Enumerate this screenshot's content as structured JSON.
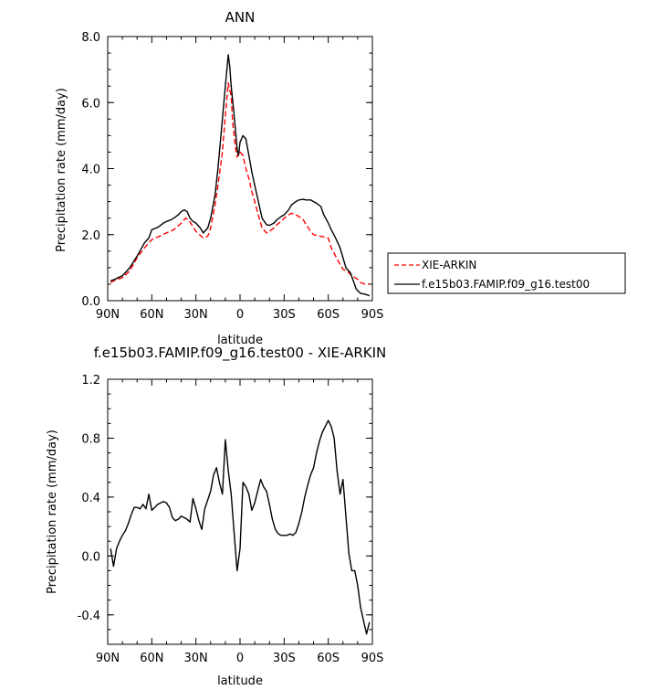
{
  "chart_data": [
    {
      "type": "line",
      "title": "ANN",
      "xlabel": "latitude",
      "ylabel": "Precipitation rate (mm/day)",
      "xlim": [
        90,
        -90
      ],
      "ylim": [
        0,
        8
      ],
      "x_ticks": [
        90,
        60,
        30,
        0,
        -30,
        -60,
        -90
      ],
      "x_tick_labels": [
        "90N",
        "60N",
        "30N",
        "0",
        "30S",
        "60S",
        "90S"
      ],
      "y_ticks": [
        0,
        2,
        4,
        6,
        8
      ],
      "y_tick_labels": [
        "0.0",
        "2.0",
        "4.0",
        "6.0",
        "8.0"
      ],
      "grid": false,
      "legend_position": "right",
      "series": [
        {
          "name": "XIE-ARKIN",
          "color": "#ff0000",
          "dash": "dashed",
          "x": [
            88,
            85,
            80,
            75,
            70,
            65,
            60,
            55,
            50,
            45,
            40,
            37,
            35,
            30,
            25,
            22,
            20,
            17,
            15,
            12,
            10,
            8,
            6,
            5,
            3,
            2,
            1,
            0,
            -2,
            -4,
            -6,
            -8,
            -10,
            -13,
            -15,
            -18,
            -20,
            -23,
            -25,
            -28,
            -30,
            -33,
            -35,
            -38,
            -40,
            -43,
            -45,
            -48,
            -50,
            -55,
            -60,
            -62,
            -65,
            -68,
            -70,
            -73,
            -75,
            -78,
            -80,
            -82,
            -85,
            -88
          ],
          "y": [
            0.55,
            0.62,
            0.7,
            0.9,
            1.3,
            1.6,
            1.85,
            1.95,
            2.05,
            2.15,
            2.35,
            2.5,
            2.45,
            2.1,
            1.9,
            1.95,
            2.2,
            2.9,
            3.5,
            4.5,
            5.6,
            6.6,
            6.2,
            5.4,
            4.6,
            4.35,
            4.5,
            4.5,
            4.4,
            4.0,
            3.7,
            3.3,
            3.0,
            2.5,
            2.2,
            2.05,
            2.1,
            2.2,
            2.3,
            2.4,
            2.5,
            2.6,
            2.65,
            2.6,
            2.55,
            2.45,
            2.3,
            2.1,
            2.0,
            1.95,
            1.9,
            1.6,
            1.35,
            1.1,
            0.95,
            0.9,
            0.8,
            0.7,
            0.65,
            0.55,
            0.5,
            0.5
          ]
        },
        {
          "name": "f.e15b03.FAMIP.f09_g16.test00",
          "color": "#000000",
          "dash": "solid",
          "x": [
            88,
            85,
            82,
            80,
            75,
            70,
            65,
            62,
            60,
            57,
            55,
            52,
            50,
            47,
            45,
            42,
            40,
            38,
            36,
            34,
            32,
            30,
            27,
            25,
            22,
            20,
            17,
            15,
            12,
            10,
            8,
            7,
            6,
            4,
            2,
            1,
            0,
            -2,
            -4,
            -6,
            -8,
            -10,
            -13,
            -15,
            -18,
            -20,
            -23,
            -25,
            -28,
            -30,
            -33,
            -35,
            -38,
            -40,
            -43,
            -45,
            -48,
            -50,
            -52,
            -55,
            -57,
            -60,
            -62,
            -65,
            -68,
            -70,
            -72,
            -75,
            -77,
            -79,
            -82,
            -85,
            -88
          ],
          "y": [
            0.6,
            0.65,
            0.72,
            0.75,
            1.0,
            1.35,
            1.75,
            1.9,
            2.15,
            2.2,
            2.25,
            2.35,
            2.4,
            2.45,
            2.5,
            2.6,
            2.7,
            2.75,
            2.7,
            2.5,
            2.4,
            2.35,
            2.2,
            2.05,
            2.2,
            2.5,
            3.2,
            4.0,
            5.5,
            6.5,
            7.45,
            7.1,
            6.5,
            5.6,
            4.6,
            4.4,
            4.8,
            5.0,
            4.9,
            4.4,
            3.9,
            3.5,
            2.9,
            2.5,
            2.3,
            2.28,
            2.35,
            2.45,
            2.55,
            2.6,
            2.75,
            2.9,
            3.0,
            3.05,
            3.07,
            3.05,
            3.05,
            3.0,
            2.95,
            2.85,
            2.6,
            2.35,
            2.15,
            1.9,
            1.6,
            1.3,
            1.0,
            0.85,
            0.6,
            0.35,
            0.22,
            0.2,
            0.15
          ]
        }
      ]
    },
    {
      "type": "line",
      "title": "f.e15b03.FAMIP.f09_g16.test00 - XIE-ARKIN",
      "xlabel": "latitude",
      "ylabel": "Precipitation rate (mm/day)",
      "xlim": [
        90,
        -90
      ],
      "ylim": [
        -0.6,
        1.2
      ],
      "x_ticks": [
        90,
        60,
        30,
        0,
        -30,
        -60,
        -90
      ],
      "x_tick_labels": [
        "90N",
        "60N",
        "30N",
        "0",
        "30S",
        "60S",
        "90S"
      ],
      "y_ticks": [
        -0.4,
        0,
        0.4,
        0.8,
        1.2
      ],
      "y_tick_labels": [
        "-0.4",
        "0.0",
        "0.4",
        "0.8",
        "1.2"
      ],
      "grid": false,
      "series": [
        {
          "color": "#000000",
          "dash": "solid",
          "x": [
            88,
            86,
            84,
            82,
            80,
            78,
            76,
            74,
            72,
            70,
            68,
            66,
            64,
            62,
            60,
            58,
            56,
            54,
            52,
            50,
            48,
            46,
            44,
            42,
            40,
            38,
            36,
            34,
            32,
            30,
            28,
            26,
            24,
            22,
            20,
            18,
            16,
            14,
            12,
            10,
            8,
            6,
            4,
            2,
            0,
            -2,
            -4,
            -6,
            -8,
            -10,
            -12,
            -14,
            -16,
            -18,
            -20,
            -22,
            -24,
            -26,
            -28,
            -30,
            -32,
            -34,
            -36,
            -38,
            -40,
            -42,
            -44,
            -46,
            -48,
            -50,
            -52,
            -54,
            -56,
            -58,
            -60,
            -62,
            -64,
            -66,
            -68,
            -70,
            -72,
            -74,
            -76,
            -78,
            -80,
            -82,
            -84,
            -86,
            -88
          ],
          "y": [
            0.05,
            -0.07,
            0.05,
            0.1,
            0.14,
            0.17,
            0.22,
            0.28,
            0.33,
            0.33,
            0.32,
            0.35,
            0.32,
            0.42,
            0.31,
            0.33,
            0.35,
            0.36,
            0.37,
            0.36,
            0.33,
            0.26,
            0.24,
            0.25,
            0.27,
            0.26,
            0.25,
            0.23,
            0.39,
            0.32,
            0.24,
            0.18,
            0.32,
            0.38,
            0.44,
            0.55,
            0.6,
            0.5,
            0.42,
            0.79,
            0.58,
            0.42,
            0.15,
            -0.1,
            0.05,
            0.5,
            0.47,
            0.42,
            0.31,
            0.36,
            0.44,
            0.52,
            0.47,
            0.44,
            0.35,
            0.25,
            0.18,
            0.15,
            0.14,
            0.14,
            0.14,
            0.15,
            0.14,
            0.16,
            0.22,
            0.3,
            0.4,
            0.48,
            0.55,
            0.6,
            0.7,
            0.78,
            0.84,
            0.88,
            0.92,
            0.88,
            0.8,
            0.58,
            0.42,
            0.52,
            0.27,
            0.02,
            -0.1,
            -0.1,
            -0.2,
            -0.35,
            -0.44,
            -0.53,
            -0.45
          ]
        }
      ]
    }
  ]
}
